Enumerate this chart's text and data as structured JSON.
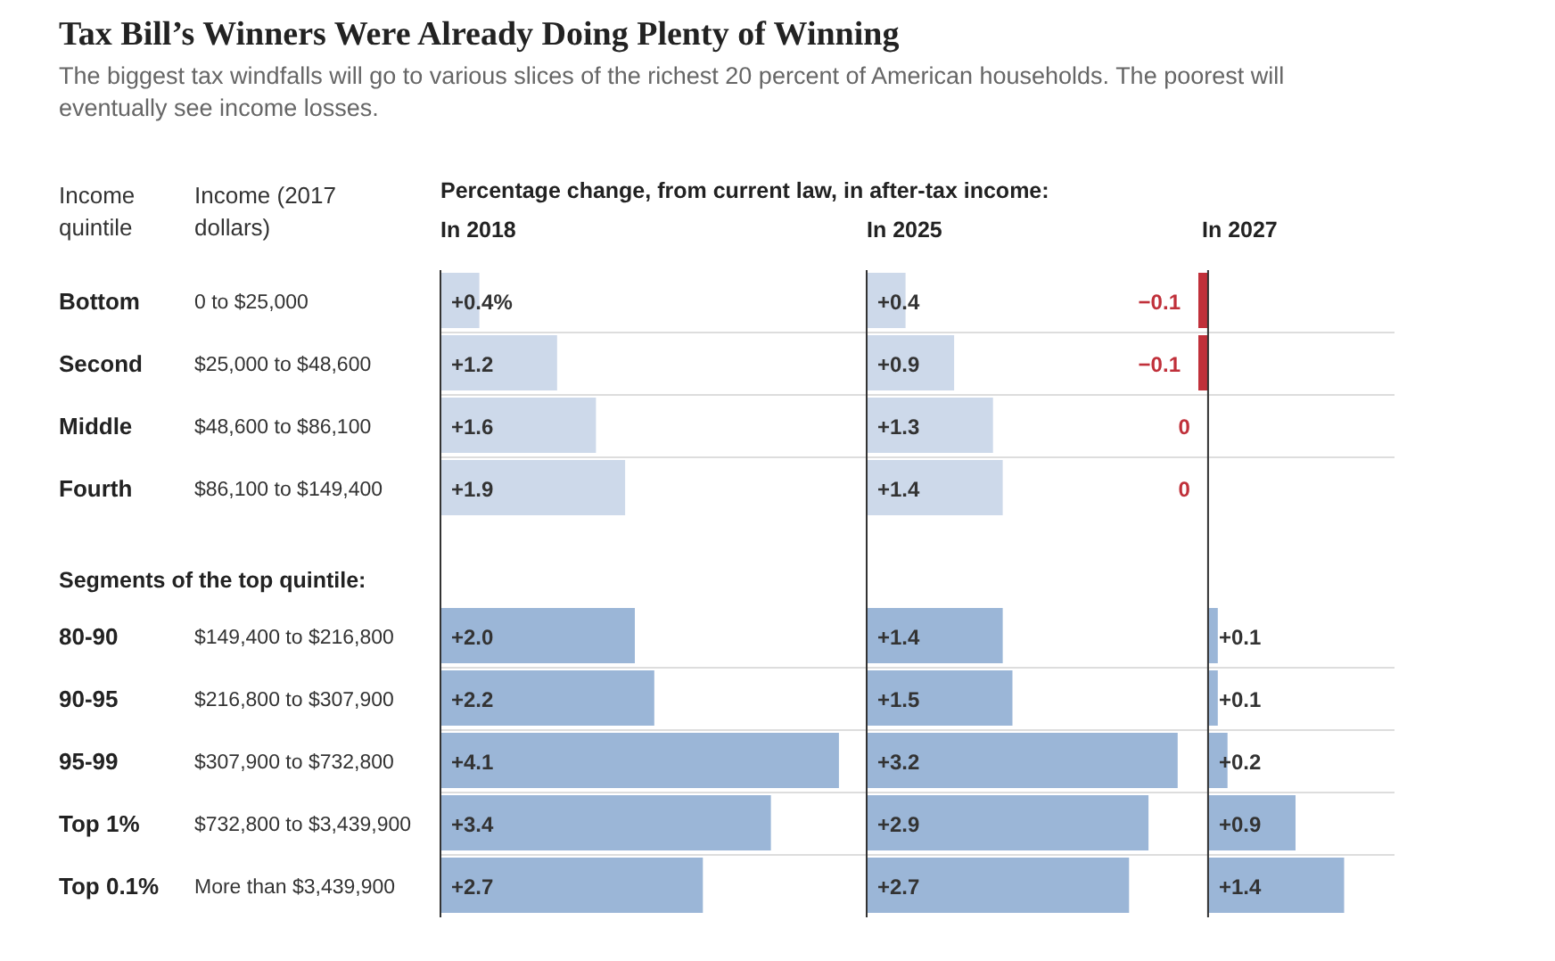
{
  "chart_data": [
    {
      "type": "other",
      "title": "Tax Bill’s Winners Were Already Doing Plenty of Winning",
      "subtitle": "The biggest tax windfalls will go to various slices of the richest 20 percent of American households. The poorest will eventually see income losses.",
      "annotations": [
        "Income quintile",
        "Income (2017 dollars)",
        "Percentage change, from current law, in after-tax income:",
        "Segments of the top quintile:",
        "0 to $25,000",
        "$25,000 to $48,600",
        "$48,600 to $86,100",
        "$86,100 to $149,400",
        "$149,400 to $216,800",
        "$216,800 to $307,900",
        "$307,900 to $732,800",
        "$732,800 to $3,439,900",
        "More than $3,439,900"
      ]
    },
    {
      "type": "bar",
      "orientation": "horizontal",
      "title": "In 2018",
      "categories": [
        "Bottom",
        "Second",
        "Middle",
        "Fourth",
        null,
        "80-90",
        "90-95",
        "95-99",
        "Top 1%",
        "Top 0.1%"
      ],
      "values": [
        0.4,
        1.2,
        1.6,
        1.9,
        null,
        2.0,
        2.2,
        4.1,
        3.4,
        2.7
      ],
      "value_labels": [
        "+0.4%",
        "+1.2",
        "+1.6",
        "+1.9",
        null,
        "+2.0",
        "+2.2",
        "+4.1",
        "+3.4",
        "+2.7"
      ],
      "colors": [
        "#cdd9ea",
        "#cdd9ea",
        "#cdd9ea",
        "#cdd9ea",
        null,
        "#9bb6d7",
        "#9bb6d7",
        "#9bb6d7",
        "#9bb6d7",
        "#9bb6d7"
      ]
    },
    {
      "type": "bar",
      "orientation": "horizontal",
      "title": "In 2025",
      "values": [
        0.4,
        0.9,
        1.3,
        1.4,
        null,
        1.4,
        1.5,
        3.2,
        2.9,
        2.7
      ],
      "value_labels": [
        "+0.4",
        "+0.9",
        "+1.3",
        "+1.4",
        null,
        "+1.4",
        "+1.5",
        "+3.2",
        "+2.9",
        "+2.7"
      ],
      "colors": [
        "#cdd9ea",
        "#cdd9ea",
        "#cdd9ea",
        "#cdd9ea",
        null,
        "#9bb6d7",
        "#9bb6d7",
        "#9bb6d7",
        "#9bb6d7",
        "#9bb6d7"
      ]
    },
    {
      "type": "bar",
      "orientation": "horizontal",
      "title": "In 2027",
      "values": [
        -0.1,
        -0.1,
        0,
        0,
        null,
        0.1,
        0.1,
        0.2,
        0.9,
        1.4
      ],
      "value_labels": [
        "−0.1",
        "−0.1",
        "0",
        "0",
        null,
        "+0.1",
        "+0.1",
        "+0.2",
        "+0.9",
        "+1.4"
      ],
      "colors": [
        "#c0303a",
        "#c0303a",
        "#c0303a",
        "#c0303a",
        null,
        "#9bb6d7",
        "#9bb6d7",
        "#9bb6d7",
        "#9bb6d7",
        "#9bb6d7"
      ]
    }
  ]
}
